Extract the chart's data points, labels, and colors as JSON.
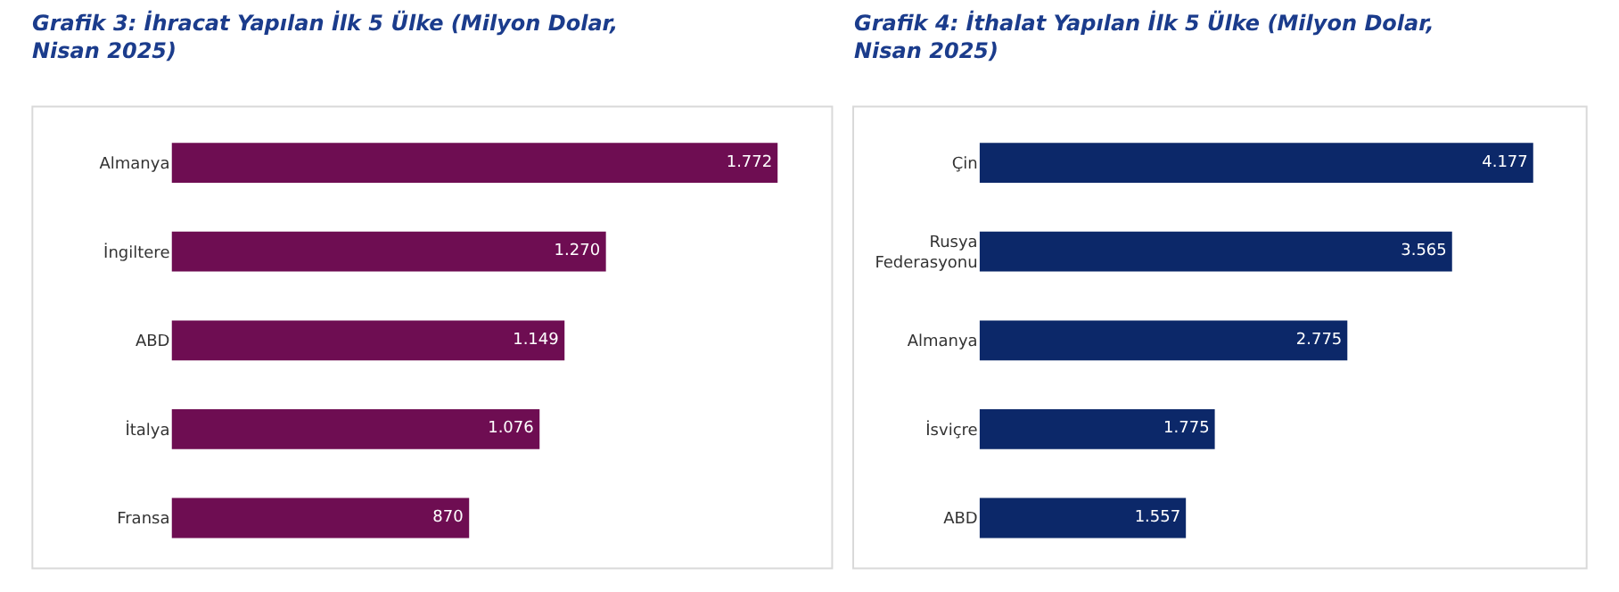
{
  "chart_data": [
    {
      "type": "bar",
      "orientation": "horizontal",
      "title": "Grafik 3: İhracat Yapılan İlk 5 Ülke (Milyon Dolar,\nNisan 2025)",
      "categories": [
        "Almanya",
        "İngiltere",
        "ABD",
        "İtalya",
        "Fransa"
      ],
      "values": [
        1772,
        1270,
        1149,
        1076,
        870
      ],
      "value_labels": [
        "1.772",
        "1.270",
        "1.149",
        "1.076",
        "870"
      ],
      "color": "#6e0d52",
      "tick_labels": "y"
    },
    {
      "type": "bar",
      "orientation": "horizontal",
      "title": "Grafik 4: İthalat Yapılan İlk 5 Ülke (Milyon Dolar,\nNisan 2025)",
      "categories": [
        "Çin",
        "Rusya\nFederasyonu",
        "Almanya",
        "İsviçre",
        "ABD"
      ],
      "values": [
        4177,
        3565,
        2775,
        1775,
        1557
      ],
      "value_labels": [
        "4.177",
        "3.565",
        "2.775",
        "1.775",
        "1.557"
      ],
      "color": "#0c2869",
      "tick_labels": "y"
    }
  ]
}
